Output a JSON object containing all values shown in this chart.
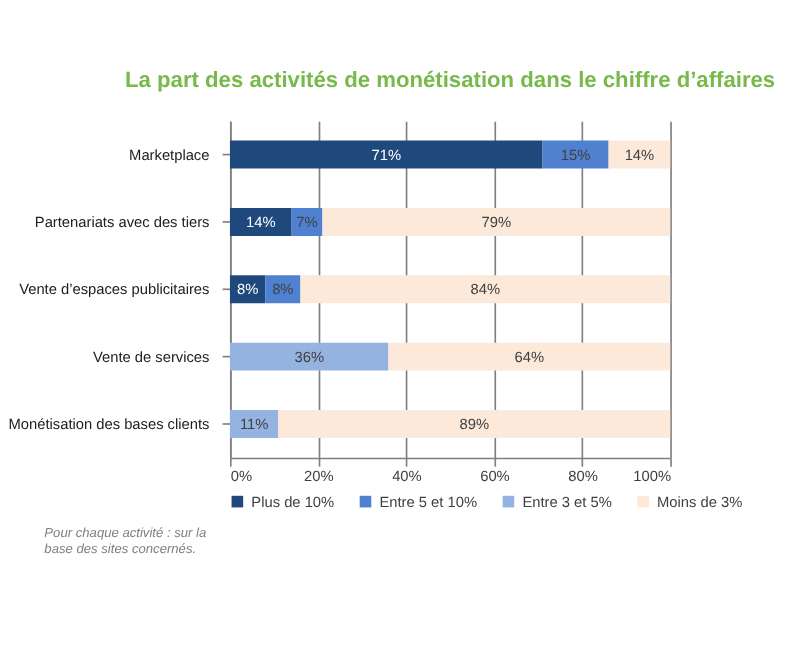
{
  "chart_data": {
    "type": "bar",
    "orientation": "horizontal",
    "stacked": true,
    "title": "La part des activités de monétisation dans le chiffre d’affaires",
    "categories": [
      "Marketplace",
      "Partenariats avec des tiers",
      "Vente d’espaces publicitaires",
      "Vente de services",
      "Monétisation des bases clients"
    ],
    "series": [
      {
        "name": "Plus de 10%",
        "color": "#1f497d",
        "values": [
          71,
          14,
          8,
          null,
          null
        ],
        "value_labels": [
          "71%",
          "14%",
          "8%",
          null,
          null
        ]
      },
      {
        "name": "Entre 5 et 10%",
        "color": "#4f81d0",
        "values": [
          15,
          7,
          8,
          null,
          null
        ],
        "value_labels": [
          "15%",
          "7%",
          "8%",
          null,
          null
        ]
      },
      {
        "name": "Entre 3 et 5%",
        "color": "#95b3e0",
        "values": [
          null,
          null,
          null,
          36,
          11
        ],
        "value_labels": [
          null,
          null,
          null,
          "36%",
          "11%"
        ]
      },
      {
        "name": "Moins de 3%",
        "color": "#fde9d9",
        "values": [
          14,
          79,
          84,
          64,
          89
        ],
        "value_labels": [
          "14%",
          "79%",
          "84%",
          "64%",
          "89%"
        ]
      }
    ],
    "xlim": [
      0,
      100
    ],
    "xticks": [
      {
        "value": 0,
        "label": "0%"
      },
      {
        "value": 20,
        "label": "20%"
      },
      {
        "value": 40,
        "label": "40%"
      },
      {
        "value": 60,
        "label": "60%"
      },
      {
        "value": 80,
        "label": "80%"
      },
      {
        "value": 100,
        "label": "100%"
      }
    ],
    "grid": "x",
    "legend": "bottom",
    "annotations": [
      "Pour chaque activité : sur la\nbase des sites concernés."
    ]
  }
}
